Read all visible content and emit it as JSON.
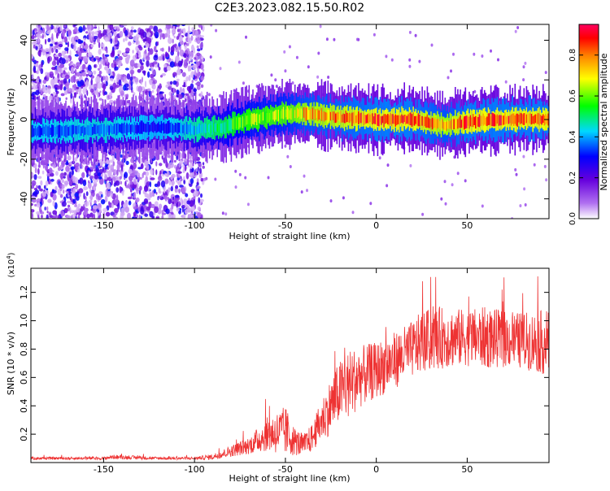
{
  "title": "C2E3.2023.082.15.50.R02",
  "chart_data": [
    {
      "type": "heatmap",
      "xlabel": "Height of straight line (km)",
      "ylabel": "Frequency (Hz)",
      "xlim": [
        -190,
        95
      ],
      "ylim": [
        -50,
        48
      ],
      "xticks": [
        -150,
        -100,
        -50,
        0,
        50
      ],
      "yticks": [
        -40,
        -20,
        0,
        20,
        40
      ],
      "colorbar": {
        "label": "Normalized spectral amplitude",
        "range": [
          0,
          0.95
        ],
        "ticks": [
          0.0,
          0.2,
          0.4,
          0.6,
          0.8
        ],
        "tick_labels": [
          "0.0",
          "0.2",
          "0.4",
          "0.6",
          "0.8"
        ],
        "colors": [
          "#ffffff",
          "#7b00d6",
          "#0000ff",
          "#00d8ff",
          "#00ff00",
          "#ffff00",
          "#ff8000",
          "#ff0000",
          "#ff0060"
        ]
      },
      "ridge": {
        "x": [
          -190,
          -150,
          -120,
          -100,
          -85,
          -70,
          -50,
          -40,
          -20,
          0,
          20,
          38,
          50,
          70,
          95
        ],
        "frequency": [
          -6,
          -5,
          -4,
          -5,
          -4,
          0,
          3,
          3,
          1,
          0,
          0,
          -3,
          -1,
          0,
          0
        ],
        "peak_amplitude": [
          0.35,
          0.4,
          0.3,
          0.45,
          0.55,
          0.65,
          0.7,
          0.8,
          0.85,
          0.9,
          0.9,
          0.8,
          0.9,
          0.9,
          0.9
        ]
      },
      "noise_region_x": [
        -190,
        -95
      ]
    },
    {
      "type": "line",
      "xlabel": "Height of straight line (km)",
      "ylabel": "SNR (10 * v/v)",
      "y_multiplier_label": "(x10",
      "y_multiplier_exp": "4",
      "y_multiplier_close": ")",
      "xlim": [
        -190,
        95
      ],
      "ylim": [
        0,
        1.37
      ],
      "xticks": [
        -150,
        -100,
        -50,
        0,
        50
      ],
      "yticks": [
        0.2,
        0.4,
        0.6,
        0.8,
        1.0,
        1.2
      ],
      "ytick_labels": [
        "0.2",
        "0.4",
        "0.6",
        "0.8",
        "1.0",
        "1.2"
      ],
      "line_color": "#ee3333",
      "envelope": {
        "x": [
          -190,
          -150,
          -145,
          -120,
          -100,
          -90,
          -80,
          -70,
          -60,
          -50,
          -45,
          -40,
          -35,
          -30,
          -25,
          -20,
          -15,
          -10,
          0,
          10,
          20,
          25,
          35,
          50,
          60,
          70,
          80,
          90,
          95
        ],
        "mean": [
          0.03,
          0.03,
          0.04,
          0.03,
          0.03,
          0.04,
          0.08,
          0.12,
          0.2,
          0.22,
          0.15,
          0.12,
          0.18,
          0.3,
          0.4,
          0.5,
          0.55,
          0.6,
          0.65,
          0.72,
          0.8,
          0.85,
          0.88,
          0.88,
          0.88,
          0.87,
          0.86,
          0.85,
          0.85
        ],
        "spread": [
          0.01,
          0.01,
          0.015,
          0.01,
          0.01,
          0.02,
          0.04,
          0.06,
          0.12,
          0.18,
          0.1,
          0.08,
          0.1,
          0.15,
          0.2,
          0.22,
          0.25,
          0.22,
          0.2,
          0.2,
          0.2,
          0.22,
          0.22,
          0.2,
          0.22,
          0.2,
          0.2,
          0.22,
          0.25
        ]
      }
    }
  ]
}
